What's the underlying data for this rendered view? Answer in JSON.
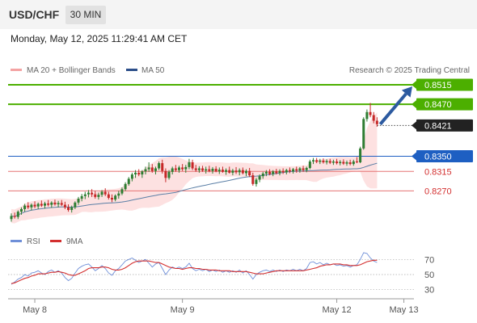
{
  "header": {
    "symbol": "USD/CHF",
    "timeframe": "30 MIN"
  },
  "datetime": "Monday, May 12, 2025 11:29:41 AM CET",
  "legend": {
    "bb_label": "MA 20 + Bollinger Bands",
    "ma50_label": "MA 50",
    "credit": "Research © 2025 Trading Central"
  },
  "rsi_legend": {
    "rsi_label": "RSI",
    "ma_label": "9MA"
  },
  "colors": {
    "up": "#2e7d32",
    "down": "#c62828",
    "resistance": "#4caf00",
    "support_line": "#1e5fc2",
    "support_weak": "#e57373",
    "bb_fill": "#fde1e1",
    "ma50": "#5b7fa6",
    "arrow": "#2c5aa0",
    "rsi": "#6f8fd8",
    "rsi_ma": "#d32f2f"
  },
  "chart_data": [
    {
      "type": "line",
      "title": "USD/CHF 30 MIN",
      "price_range": [
        0.8185,
        0.8528
      ],
      "levels": [
        {
          "label": "0.8515",
          "value": 0.8515,
          "kind": "resistance"
        },
        {
          "label": "0.8470",
          "value": 0.847,
          "kind": "resistance"
        },
        {
          "label": "0.8421",
          "value": 0.8421,
          "kind": "current"
        },
        {
          "label": "0.8350",
          "value": 0.835,
          "kind": "pivot"
        },
        {
          "label": "0.8315",
          "value": 0.8315,
          "kind": "support"
        },
        {
          "label": "0.8270",
          "value": 0.827,
          "kind": "support"
        }
      ],
      "x_ticks": [
        "May 8",
        "May 9",
        "May 12",
        "May 13"
      ],
      "x_tick_index": [
        7,
        51,
        97,
        117
      ],
      "candles": [
        [
          0.8205,
          0.8218,
          0.8199,
          0.8212
        ],
        [
          0.8212,
          0.822,
          0.8206,
          0.821
        ],
        [
          0.821,
          0.8225,
          0.8205,
          0.8222
        ],
        [
          0.8222,
          0.8232,
          0.8215,
          0.8228
        ],
        [
          0.8228,
          0.824,
          0.8222,
          0.8236
        ],
        [
          0.8236,
          0.8244,
          0.8228,
          0.8232
        ],
        [
          0.8232,
          0.8241,
          0.8225,
          0.8238
        ],
        [
          0.8238,
          0.8246,
          0.823,
          0.8234
        ],
        [
          0.8234,
          0.8243,
          0.8228,
          0.824
        ],
        [
          0.824,
          0.8248,
          0.8233,
          0.8236
        ],
        [
          0.8236,
          0.8245,
          0.8229,
          0.8241
        ],
        [
          0.8241,
          0.8249,
          0.8234,
          0.8238
        ],
        [
          0.8238,
          0.8246,
          0.8231,
          0.8243
        ],
        [
          0.8243,
          0.825,
          0.8236,
          0.8239
        ],
        [
          0.8239,
          0.8247,
          0.8232,
          0.8242
        ],
        [
          0.8242,
          0.8249,
          0.8235,
          0.8238
        ],
        [
          0.8238,
          0.8245,
          0.8228,
          0.8232
        ],
        [
          0.8232,
          0.8239,
          0.8222,
          0.8226
        ],
        [
          0.8226,
          0.8236,
          0.822,
          0.8232
        ],
        [
          0.8232,
          0.8246,
          0.8228,
          0.8243
        ],
        [
          0.8243,
          0.8256,
          0.8238,
          0.8252
        ],
        [
          0.8252,
          0.8263,
          0.8246,
          0.8258
        ],
        [
          0.8258,
          0.8268,
          0.8251,
          0.8262
        ],
        [
          0.8262,
          0.8272,
          0.8255,
          0.8266
        ],
        [
          0.8266,
          0.8274,
          0.8256,
          0.8262
        ],
        [
          0.8262,
          0.827,
          0.8252,
          0.8256
        ],
        [
          0.8256,
          0.8266,
          0.825,
          0.8261
        ],
        [
          0.8261,
          0.8272,
          0.8256,
          0.8268
        ],
        [
          0.8268,
          0.8276,
          0.8258,
          0.8262
        ],
        [
          0.8262,
          0.8268,
          0.825,
          0.8254
        ],
        [
          0.8254,
          0.8262,
          0.8244,
          0.825
        ],
        [
          0.825,
          0.8262,
          0.8246,
          0.8259
        ],
        [
          0.8259,
          0.827,
          0.8252,
          0.8264
        ],
        [
          0.8264,
          0.8278,
          0.826,
          0.8274
        ],
        [
          0.8274,
          0.829,
          0.827,
          0.8286
        ],
        [
          0.8286,
          0.8302,
          0.8282,
          0.8298
        ],
        [
          0.8298,
          0.8312,
          0.8292,
          0.8308
        ],
        [
          0.8308,
          0.8318,
          0.83,
          0.8312
        ],
        [
          0.8312,
          0.832,
          0.8304,
          0.8308
        ],
        [
          0.8308,
          0.8318,
          0.83,
          0.8315
        ],
        [
          0.8315,
          0.8326,
          0.8308,
          0.832
        ],
        [
          0.832,
          0.8336,
          0.8314,
          0.8324
        ],
        [
          0.8324,
          0.8332,
          0.8312,
          0.8316
        ],
        [
          0.8316,
          0.8326,
          0.8308,
          0.8322
        ],
        [
          0.8322,
          0.8338,
          0.8318,
          0.8334
        ],
        [
          0.8334,
          0.8342,
          0.831,
          0.8316
        ],
        [
          0.8316,
          0.8322,
          0.829,
          0.83
        ],
        [
          0.83,
          0.8318,
          0.8296,
          0.8314
        ],
        [
          0.8314,
          0.8326,
          0.8308,
          0.8322
        ],
        [
          0.8322,
          0.833,
          0.8314,
          0.8318
        ],
        [
          0.8318,
          0.8328,
          0.8312,
          0.8324
        ],
        [
          0.8324,
          0.8332,
          0.8316,
          0.832
        ],
        [
          0.832,
          0.833,
          0.8312,
          0.8325
        ],
        [
          0.8325,
          0.8344,
          0.832,
          0.8336
        ],
        [
          0.8336,
          0.8342,
          0.8318,
          0.8322
        ],
        [
          0.8322,
          0.833,
          0.8314,
          0.8318
        ],
        [
          0.8318,
          0.8327,
          0.8312,
          0.8322
        ],
        [
          0.8322,
          0.8328,
          0.8314,
          0.8317
        ],
        [
          0.8317,
          0.8326,
          0.831,
          0.832
        ],
        [
          0.832,
          0.8328,
          0.8313,
          0.8316
        ],
        [
          0.8316,
          0.8325,
          0.831,
          0.8321
        ],
        [
          0.8321,
          0.8327,
          0.8313,
          0.8315
        ],
        [
          0.8315,
          0.8324,
          0.8309,
          0.8319
        ],
        [
          0.8319,
          0.8326,
          0.8312,
          0.8314
        ],
        [
          0.8314,
          0.8322,
          0.8307,
          0.8318
        ],
        [
          0.8318,
          0.8326,
          0.831,
          0.8312
        ],
        [
          0.8312,
          0.8321,
          0.8306,
          0.8317
        ],
        [
          0.8317,
          0.8325,
          0.8309,
          0.8313
        ],
        [
          0.8313,
          0.8322,
          0.8306,
          0.8318
        ],
        [
          0.8318,
          0.8324,
          0.8308,
          0.8311
        ],
        [
          0.8311,
          0.832,
          0.8304,
          0.8316
        ],
        [
          0.8316,
          0.8323,
          0.8302,
          0.8306
        ],
        [
          0.8306,
          0.8312,
          0.8282,
          0.8286
        ],
        [
          0.8286,
          0.83,
          0.828,
          0.8296
        ],
        [
          0.8296,
          0.8308,
          0.829,
          0.8304
        ],
        [
          0.8304,
          0.8314,
          0.8298,
          0.831
        ],
        [
          0.831,
          0.8318,
          0.8304,
          0.8314
        ],
        [
          0.8314,
          0.832,
          0.8306,
          0.8309
        ],
        [
          0.8309,
          0.8318,
          0.8304,
          0.8315
        ],
        [
          0.8315,
          0.8321,
          0.8308,
          0.8311
        ],
        [
          0.8311,
          0.832,
          0.8306,
          0.8316
        ],
        [
          0.8316,
          0.8322,
          0.8309,
          0.8313
        ],
        [
          0.8313,
          0.8321,
          0.8308,
          0.8318
        ],
        [
          0.8318,
          0.8324,
          0.8311,
          0.8315
        ],
        [
          0.8315,
          0.8323,
          0.831,
          0.832
        ],
        [
          0.832,
          0.8326,
          0.8312,
          0.8317
        ],
        [
          0.8317,
          0.8325,
          0.8312,
          0.8322
        ],
        [
          0.8322,
          0.8328,
          0.8314,
          0.8318
        ],
        [
          0.8318,
          0.8326,
          0.8313,
          0.8323
        ],
        [
          0.8323,
          0.8342,
          0.832,
          0.8338
        ],
        [
          0.8338,
          0.8346,
          0.8332,
          0.8341
        ],
        [
          0.8341,
          0.8346,
          0.8334,
          0.8337
        ],
        [
          0.8337,
          0.8344,
          0.8332,
          0.834
        ],
        [
          0.834,
          0.8345,
          0.8333,
          0.8336
        ],
        [
          0.8336,
          0.8343,
          0.8331,
          0.8339
        ],
        [
          0.8339,
          0.8344,
          0.8332,
          0.8335
        ],
        [
          0.8335,
          0.8342,
          0.833,
          0.8338
        ],
        [
          0.8338,
          0.8344,
          0.8331,
          0.8334
        ],
        [
          0.8334,
          0.8341,
          0.8329,
          0.8337
        ],
        [
          0.8337,
          0.8343,
          0.833,
          0.8333
        ],
        [
          0.8333,
          0.834,
          0.8328,
          0.8336
        ],
        [
          0.8336,
          0.8342,
          0.8329,
          0.8332
        ],
        [
          0.8332,
          0.8342,
          0.8328,
          0.8338
        ],
        [
          0.8338,
          0.8348,
          0.8334,
          0.8336
        ],
        [
          0.8336,
          0.8372,
          0.8334,
          0.8368
        ],
        [
          0.8368,
          0.844,
          0.8365,
          0.8436
        ],
        [
          0.8436,
          0.8458,
          0.843,
          0.8452
        ],
        [
          0.8452,
          0.8473,
          0.844,
          0.8445
        ],
        [
          0.8445,
          0.8452,
          0.8426,
          0.8432
        ],
        [
          0.8432,
          0.844,
          0.8418,
          0.8424
        ]
      ]
    },
    {
      "type": "line",
      "title": "RSI",
      "ylim": [
        20,
        80
      ],
      "y_ticks": [
        70,
        50,
        30
      ],
      "series": [
        {
          "name": "RSI",
          "values": [
            37,
            40,
            44,
            46,
            50,
            48,
            52,
            53,
            55,
            52,
            50,
            54,
            56,
            53,
            55,
            52,
            46,
            42,
            45,
            52,
            58,
            61,
            63,
            64,
            60,
            55,
            58,
            62,
            58,
            52,
            49,
            55,
            58,
            63,
            68,
            70,
            72,
            69,
            66,
            68,
            70,
            65,
            60,
            64,
            66,
            58,
            50,
            56,
            60,
            58,
            60,
            58,
            60,
            65,
            58,
            55,
            57,
            55,
            57,
            54,
            56,
            54,
            56,
            53,
            55,
            53,
            55,
            53,
            56,
            52,
            55,
            50,
            44,
            50,
            53,
            55,
            56,
            54,
            56,
            54,
            56,
            54,
            56,
            55,
            57,
            55,
            57,
            55,
            58,
            66,
            67,
            64,
            66,
            63,
            65,
            63,
            64,
            62,
            63,
            61,
            62,
            60,
            62,
            63,
            70,
            79,
            78,
            72,
            68,
            66
          ]
        },
        {
          "name": "9MA",
          "values": [
            38,
            39,
            41,
            43,
            45,
            46,
            48,
            49,
            51,
            51,
            51,
            52,
            53,
            53,
            54,
            53,
            52,
            50,
            49,
            49,
            51,
            53,
            55,
            58,
            59,
            59,
            59,
            60,
            60,
            59,
            57,
            56,
            56,
            57,
            59,
            62,
            65,
            67,
            68,
            68,
            68,
            68,
            67,
            66,
            66,
            64,
            62,
            60,
            59,
            58,
            58,
            57,
            58,
            59,
            59,
            58,
            58,
            57,
            57,
            56,
            56,
            56,
            55,
            55,
            55,
            55,
            54,
            54,
            54,
            54,
            54,
            53,
            52,
            51,
            51,
            51,
            52,
            53,
            54,
            55,
            55,
            55,
            55,
            55,
            55,
            55,
            55,
            55,
            56,
            57,
            58,
            59,
            61,
            62,
            63,
            63,
            64,
            64,
            64,
            63,
            63,
            62,
            62,
            62,
            63,
            65,
            67,
            68,
            69,
            69
          ]
        }
      ]
    }
  ]
}
